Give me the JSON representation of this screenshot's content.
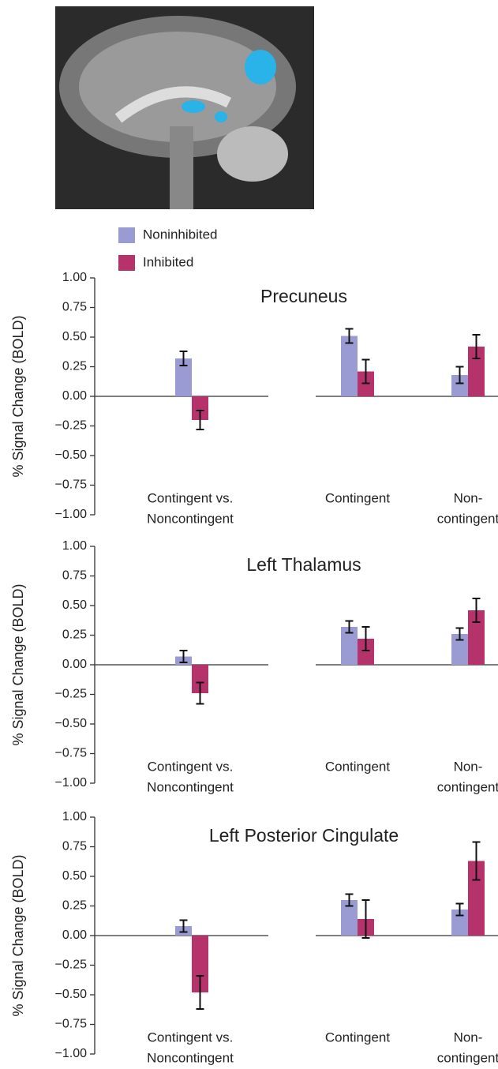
{
  "chart_data": [
    {
      "type": "bar",
      "title": "Precuneus",
      "ylabel": "% Signal Change (BOLD)",
      "categories": [
        [
          "Contingent vs.",
          "Noncontingent"
        ],
        [
          "Contingent"
        ],
        [
          "Non-",
          "contingent"
        ]
      ],
      "series": [
        {
          "name": "Noninhibited",
          "color": "#9b9bd3",
          "values": [
            0.32,
            0.51,
            0.18
          ],
          "errors": [
            0.06,
            0.06,
            0.07
          ]
        },
        {
          "name": "Inhibited",
          "color": "#b5336a",
          "values": [
            -0.2,
            0.21,
            0.42
          ],
          "errors": [
            0.08,
            0.1,
            0.1
          ]
        }
      ],
      "ylim": [
        -1,
        1
      ],
      "yticks": [
        {
          "value": -1,
          "label": "−1.00"
        },
        {
          "value": -0.75,
          "label": "−0.75"
        },
        {
          "value": -0.5,
          "label": "−0.50"
        },
        {
          "value": -0.25,
          "label": "−0.25"
        },
        {
          "value": 0,
          "label": "0.00"
        },
        {
          "value": 0.25,
          "label": "0.25"
        },
        {
          "value": 0.5,
          "label": "0.50"
        },
        {
          "value": 0.75,
          "label": "0.75"
        },
        {
          "value": 1,
          "label": "1.00"
        }
      ]
    },
    {
      "type": "bar",
      "title": "Left Thalamus",
      "ylabel": "% Signal Change (BOLD)",
      "categories": [
        [
          "Contingent vs.",
          "Noncontingent"
        ],
        [
          "Contingent"
        ],
        [
          "Non-",
          "contingent"
        ]
      ],
      "series": [
        {
          "color": "#9b9bd3",
          "values": [
            0.07,
            0.32,
            0.26
          ],
          "errors": [
            0.05,
            0.05,
            0.05
          ]
        },
        {
          "color": "#b5336a",
          "values": [
            -0.24,
            0.22,
            0.46
          ],
          "errors": [
            0.09,
            0.1,
            0.1
          ]
        }
      ],
      "ylim": [
        -1,
        1
      ],
      "yticks": [
        {
          "value": -1,
          "label": "−1.00"
        },
        {
          "value": -0.75,
          "label": "−0.75"
        },
        {
          "value": -0.5,
          "label": "−0.50"
        },
        {
          "value": -0.25,
          "label": "−0.25"
        },
        {
          "value": 0,
          "label": "0.00"
        },
        {
          "value": 0.25,
          "label": "0.25"
        },
        {
          "value": 0.5,
          "label": "0.50"
        },
        {
          "value": 0.75,
          "label": "0.75"
        },
        {
          "value": 1,
          "label": "1.00"
        }
      ]
    },
    {
      "type": "bar",
      "title": "Left Posterior Cingulate",
      "ylabel": "% Signal Change (BOLD)",
      "categories": [
        [
          "Contingent vs.",
          "Noncontingent"
        ],
        [
          "Contingent"
        ],
        [
          "Non-",
          "contingent"
        ]
      ],
      "series": [
        {
          "color": "#9b9bd3",
          "values": [
            0.08,
            0.3,
            0.22
          ],
          "errors": [
            0.05,
            0.05,
            0.05
          ]
        },
        {
          "color": "#b5336a",
          "values": [
            -0.48,
            0.14,
            0.63
          ],
          "errors": [
            0.14,
            0.16,
            0.16
          ]
        }
      ],
      "ylim": [
        -1,
        1
      ],
      "yticks": [
        {
          "value": -1,
          "label": "−1.00"
        },
        {
          "value": -0.75,
          "label": "−0.75"
        },
        {
          "value": -0.5,
          "label": "−0.50"
        },
        {
          "value": -0.25,
          "label": "−0.25"
        },
        {
          "value": 0,
          "label": "0.00"
        },
        {
          "value": 0.25,
          "label": "0.25"
        },
        {
          "value": 0.5,
          "label": "0.50"
        },
        {
          "value": 0.75,
          "label": "0.75"
        },
        {
          "value": 1,
          "label": "1.00"
        }
      ]
    }
  ]
}
